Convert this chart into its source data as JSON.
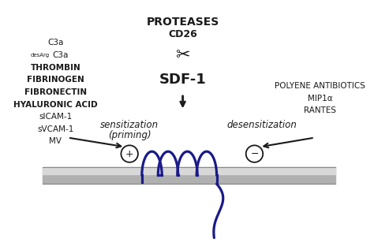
{
  "bg_color": "#ffffff",
  "text_color": "#1a1a1a",
  "proteases_label": "PROTEASES",
  "cd26_label": "CD26",
  "sdf_label": "SDF-1",
  "sensitization_label": "sensitization",
  "priming_label": "(priming)",
  "desensitization_label": "desensitization",
  "left_items": [
    "C3a",
    "desArg C3a",
    "THROMBIN",
    "FIBRINOGEN",
    "FIBRONECTIN",
    "HYALURONIC ACID",
    "sICAM-1",
    "sVCAM-1",
    "MV"
  ],
  "left_bold": [
    "THROMBIN",
    "FIBRINOGEN",
    "FIBRONECTIN",
    "HYALURONIC ACID"
  ],
  "right_items": [
    "POLYENE ANTIBIOTICS",
    "MIP1α",
    "RANTES"
  ],
  "membrane_color_dark": "#999999",
  "membrane_color_light": "#cccccc",
  "receptor_color": "#1a1a8a"
}
